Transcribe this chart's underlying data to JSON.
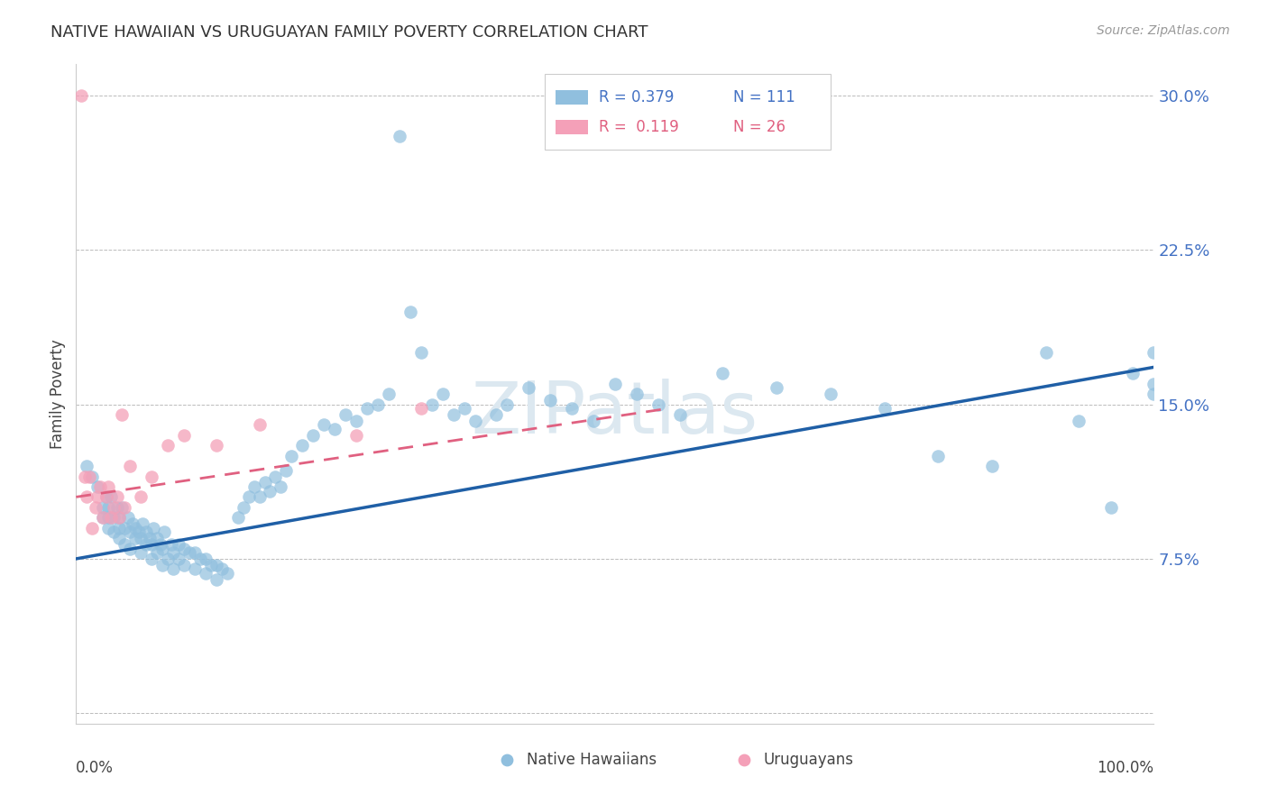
{
  "title": "NATIVE HAWAIIAN VS URUGUAYAN FAMILY POVERTY CORRELATION CHART",
  "source": "Source: ZipAtlas.com",
  "ylabel": "Family Poverty",
  "yticks": [
    0.0,
    0.075,
    0.15,
    0.225,
    0.3
  ],
  "ytick_labels": [
    "",
    "7.5%",
    "15.0%",
    "22.5%",
    "30.0%"
  ],
  "xlim": [
    0.0,
    1.0
  ],
  "ylim": [
    -0.005,
    0.315
  ],
  "legend_blue_r": "0.379",
  "legend_blue_n": "111",
  "legend_pink_r": "0.119",
  "legend_pink_n": "26",
  "blue_color": "#90bfde",
  "pink_color": "#f4a0b8",
  "blue_line_color": "#1f5fa6",
  "pink_line_color": "#e06080",
  "watermark": "ZIPatlas",
  "watermark_color": "#dce8f0",
  "background_color": "#ffffff",
  "native_hawaiians_x": [
    0.01,
    0.015,
    0.02,
    0.025,
    0.025,
    0.028,
    0.03,
    0.03,
    0.03,
    0.032,
    0.035,
    0.035,
    0.038,
    0.04,
    0.04,
    0.04,
    0.042,
    0.045,
    0.045,
    0.048,
    0.05,
    0.05,
    0.052,
    0.055,
    0.055,
    0.058,
    0.06,
    0.06,
    0.062,
    0.065,
    0.065,
    0.068,
    0.07,
    0.07,
    0.072,
    0.075,
    0.075,
    0.078,
    0.08,
    0.08,
    0.082,
    0.085,
    0.088,
    0.09,
    0.09,
    0.095,
    0.095,
    0.1,
    0.1,
    0.105,
    0.11,
    0.11,
    0.115,
    0.12,
    0.12,
    0.125,
    0.13,
    0.13,
    0.135,
    0.14,
    0.15,
    0.155,
    0.16,
    0.165,
    0.17,
    0.175,
    0.18,
    0.185,
    0.19,
    0.195,
    0.2,
    0.21,
    0.22,
    0.23,
    0.24,
    0.25,
    0.26,
    0.27,
    0.28,
    0.29,
    0.3,
    0.31,
    0.32,
    0.33,
    0.34,
    0.35,
    0.36,
    0.37,
    0.39,
    0.4,
    0.42,
    0.44,
    0.46,
    0.48,
    0.5,
    0.52,
    0.54,
    0.56,
    0.6,
    0.65,
    0.7,
    0.75,
    0.8,
    0.85,
    0.9,
    0.93,
    0.96,
    0.98,
    1.0,
    1.0,
    1.0
  ],
  "native_hawaiians_y": [
    0.12,
    0.115,
    0.11,
    0.095,
    0.1,
    0.105,
    0.09,
    0.095,
    0.1,
    0.105,
    0.088,
    0.095,
    0.1,
    0.085,
    0.09,
    0.095,
    0.1,
    0.082,
    0.09,
    0.095,
    0.08,
    0.088,
    0.092,
    0.085,
    0.09,
    0.088,
    0.078,
    0.085,
    0.092,
    0.082,
    0.088,
    0.085,
    0.075,
    0.082,
    0.09,
    0.078,
    0.085,
    0.082,
    0.072,
    0.08,
    0.088,
    0.075,
    0.082,
    0.07,
    0.078,
    0.075,
    0.082,
    0.072,
    0.08,
    0.078,
    0.07,
    0.078,
    0.075,
    0.068,
    0.075,
    0.072,
    0.065,
    0.072,
    0.07,
    0.068,
    0.095,
    0.1,
    0.105,
    0.11,
    0.105,
    0.112,
    0.108,
    0.115,
    0.11,
    0.118,
    0.125,
    0.13,
    0.135,
    0.14,
    0.138,
    0.145,
    0.142,
    0.148,
    0.15,
    0.155,
    0.28,
    0.195,
    0.175,
    0.15,
    0.155,
    0.145,
    0.148,
    0.142,
    0.145,
    0.15,
    0.158,
    0.152,
    0.148,
    0.142,
    0.16,
    0.155,
    0.15,
    0.145,
    0.165,
    0.158,
    0.155,
    0.148,
    0.125,
    0.12,
    0.175,
    0.142,
    0.1,
    0.165,
    0.16,
    0.155,
    0.175
  ],
  "uruguayans_x": [
    0.005,
    0.008,
    0.01,
    0.012,
    0.015,
    0.018,
    0.02,
    0.022,
    0.025,
    0.028,
    0.03,
    0.032,
    0.035,
    0.038,
    0.04,
    0.042,
    0.045,
    0.05,
    0.06,
    0.07,
    0.085,
    0.1,
    0.13,
    0.17,
    0.26,
    0.32
  ],
  "uruguayans_y": [
    0.3,
    0.115,
    0.105,
    0.115,
    0.09,
    0.1,
    0.105,
    0.11,
    0.095,
    0.105,
    0.11,
    0.095,
    0.1,
    0.105,
    0.095,
    0.145,
    0.1,
    0.12,
    0.105,
    0.115,
    0.13,
    0.135,
    0.13,
    0.14,
    0.135,
    0.148
  ],
  "blue_trend_x0": 0.0,
  "blue_trend_x1": 1.0,
  "blue_trend_y0": 0.075,
  "blue_trend_y1": 0.168,
  "pink_trend_x0": 0.0,
  "pink_trend_x1": 0.55,
  "pink_trend_y0": 0.105,
  "pink_trend_y1": 0.148
}
